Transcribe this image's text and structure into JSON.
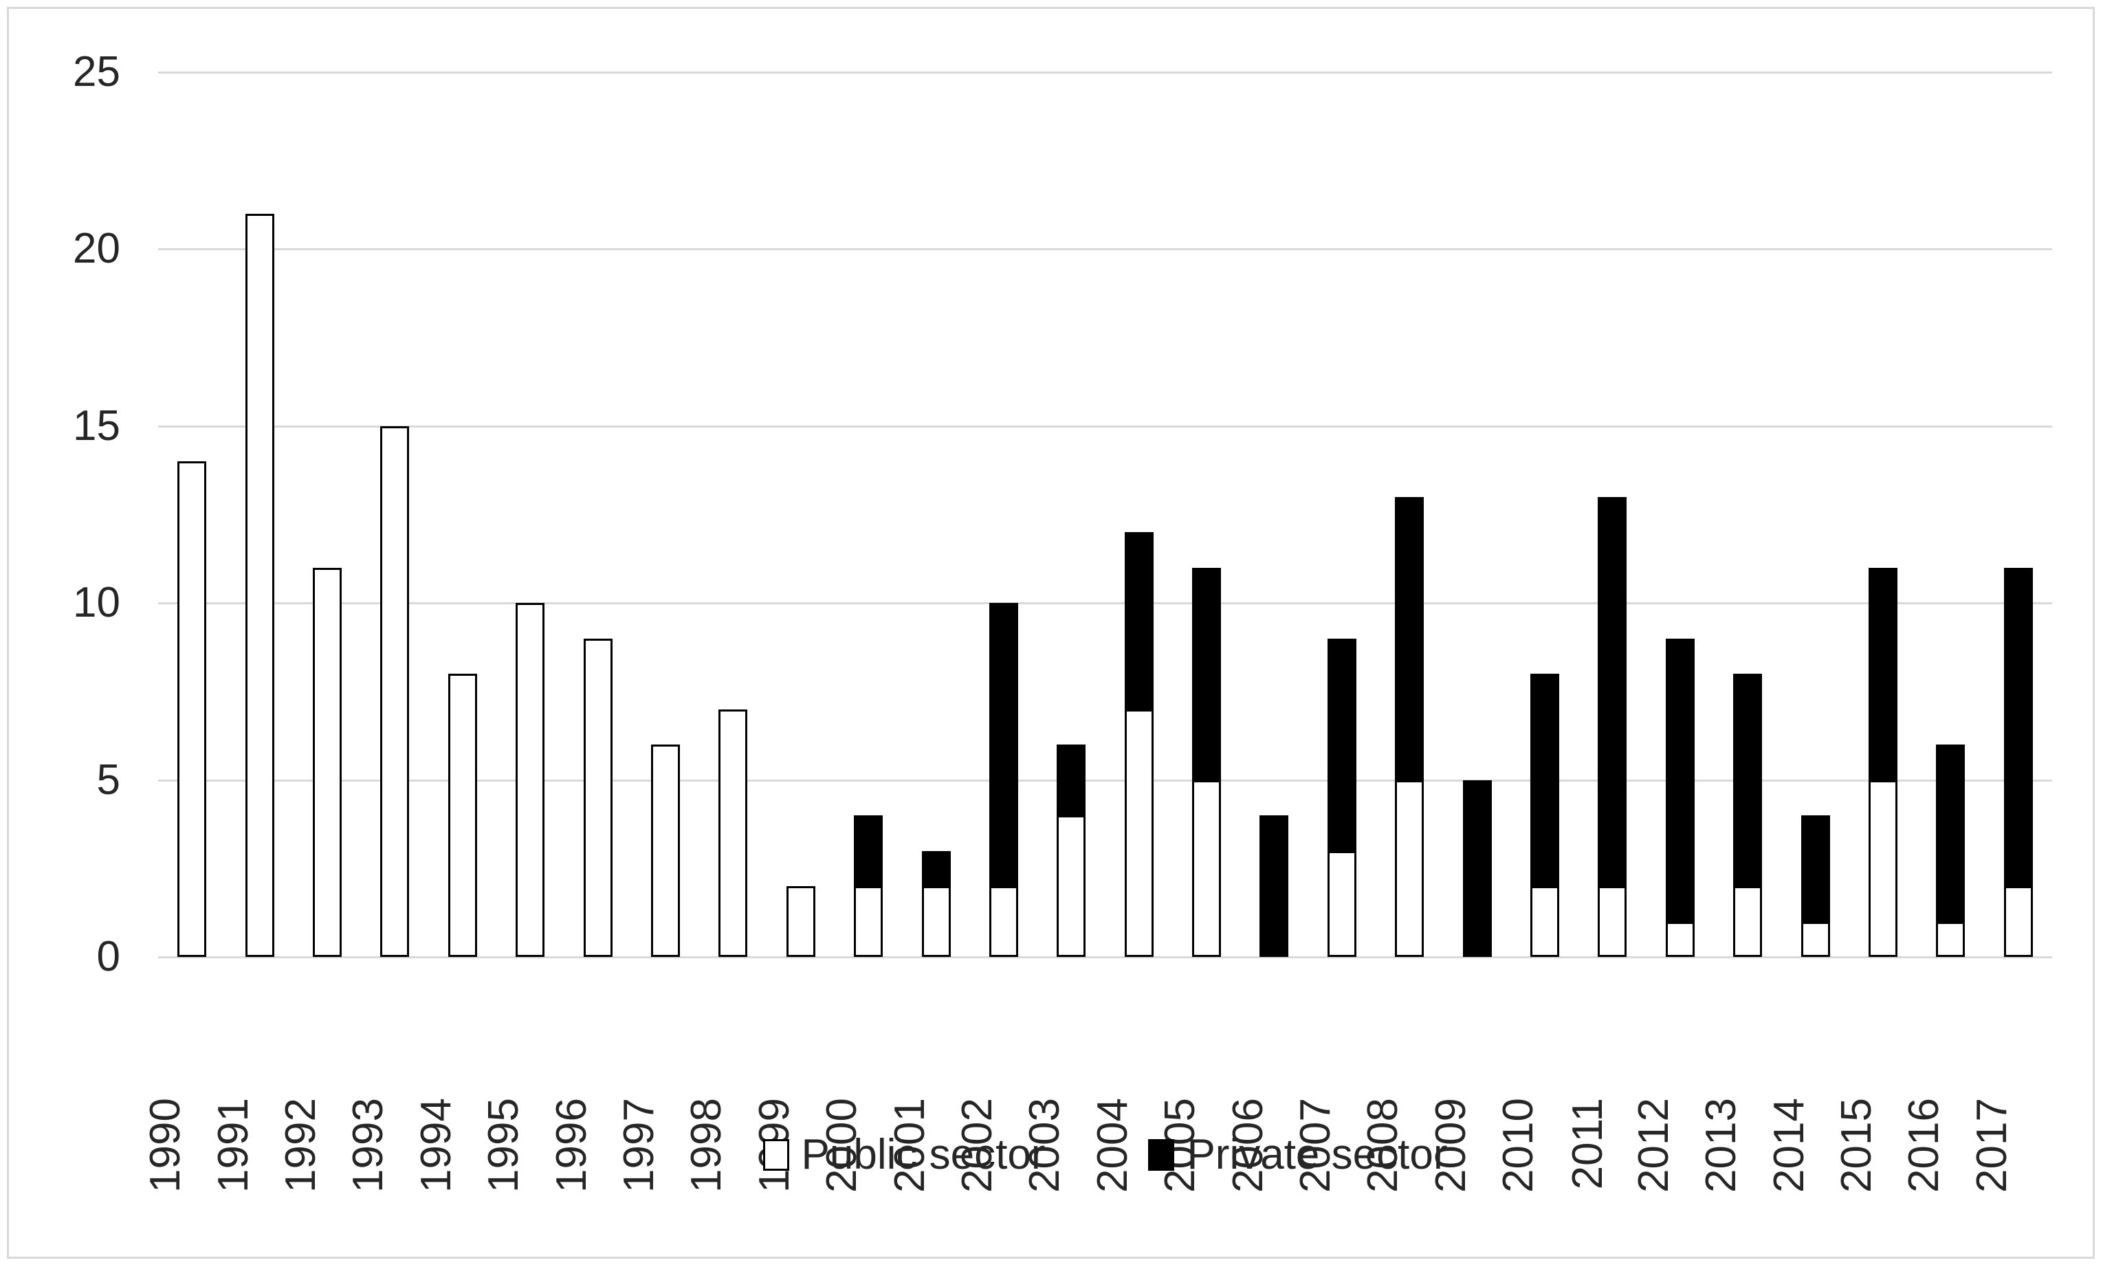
{
  "chart_data": {
    "type": "bar",
    "stacked": true,
    "title": "",
    "xlabel": "",
    "ylabel": "",
    "ylim": [
      0,
      25
    ],
    "yticks": [
      0,
      5,
      10,
      15,
      20,
      25
    ],
    "grid": true,
    "legend_position": "bottom-center",
    "categories": [
      "1990",
      "1991",
      "1992",
      "1993",
      "1994",
      "1995",
      "1996",
      "1997",
      "1998",
      "1999",
      "2000",
      "2001",
      "2002",
      "2003",
      "2004",
      "2005",
      "2006",
      "2007",
      "2008",
      "2009",
      "2010",
      "2011",
      "2012",
      "2013",
      "2014",
      "2015",
      "2016",
      "2017"
    ],
    "series": [
      {
        "name": "Public sector",
        "color": "#ffffff",
        "border_color": "#000000",
        "values": [
          14,
          21,
          11,
          15,
          8,
          10,
          9,
          6,
          7,
          2,
          2,
          2,
          2,
          4,
          7,
          5,
          0,
          3,
          5,
          0,
          2,
          2,
          1,
          2,
          1,
          5,
          1,
          2
        ]
      },
      {
        "name": "Private sector",
        "color": "#000000",
        "border_color": "#000000",
        "values": [
          0,
          0,
          0,
          0,
          0,
          0,
          0,
          0,
          0,
          0,
          2,
          1,
          8,
          2,
          5,
          6,
          4,
          6,
          8,
          5,
          6,
          11,
          8,
          6,
          3,
          6,
          5,
          9
        ]
      }
    ]
  },
  "colors": {
    "gridline": "#d9d9d9",
    "frame_border": "#d9d9d9",
    "axis_text": "#262626",
    "background": "#ffffff"
  },
  "legend": {
    "items": [
      {
        "label": "Public sector",
        "swatch": "white-outlined-square"
      },
      {
        "label": "Private sector",
        "swatch": "solid-black-square"
      }
    ]
  }
}
